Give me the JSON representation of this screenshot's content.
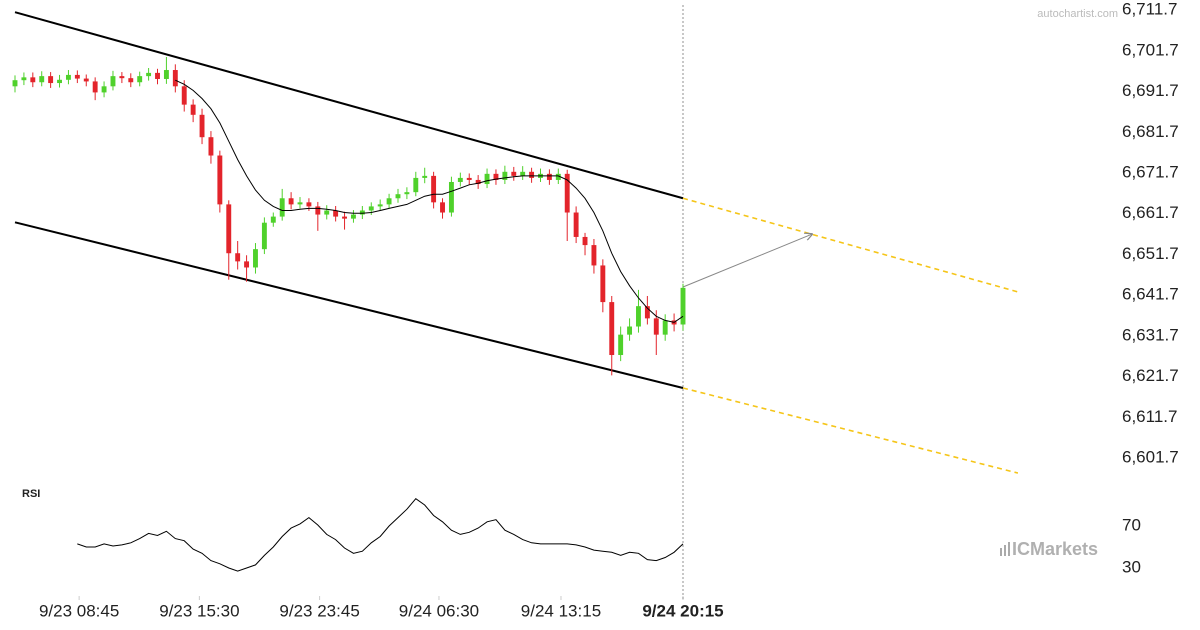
{
  "chart_data": {
    "type": "candlestick",
    "watermark": "autochartist.com",
    "brand": "ICMarkets",
    "up_color": "#4fd12b",
    "down_color": "#e3242b",
    "xlim": [
      0,
      75
    ],
    "xticks": [
      {
        "value": 7.2,
        "label": "9/23 08:45"
      },
      {
        "value": 20.7,
        "label": "9/23 15:30"
      },
      {
        "value": 34.2,
        "label": "9/23 23:45"
      },
      {
        "value": 47.6,
        "label": "9/24 06:30"
      },
      {
        "value": 61.3,
        "label": "9/24 13:15"
      },
      {
        "value": 75,
        "label": "9/24 20:15"
      }
    ],
    "ylim": [
      6596.3,
      6714.2
    ],
    "yticks": [
      {
        "value": 6711.7,
        "label": "6,711.7"
      },
      {
        "value": 6701.7,
        "label": "6,701.7"
      },
      {
        "value": 6691.7,
        "label": "6,691.7"
      },
      {
        "value": 6681.7,
        "label": "6,681.7"
      },
      {
        "value": 6671.7,
        "label": "6,671.7"
      },
      {
        "value": 6661.7,
        "label": "6,661.7"
      },
      {
        "value": 6651.7,
        "label": "6,651.7"
      },
      {
        "value": 6641.7,
        "label": "6,641.7"
      },
      {
        "value": 6631.7,
        "label": "6,631.7"
      },
      {
        "value": 6621.7,
        "label": "6,621.7"
      },
      {
        "value": 6611.7,
        "label": "6,611.7"
      },
      {
        "value": 6601.7,
        "label": "6,601.7"
      }
    ],
    "open": [
      6693.0,
      6694.5,
      6695.2,
      6694.0,
      6695.5,
      6693.8,
      6694.6,
      6695.8,
      6694.9,
      6694.2,
      6691.5,
      6693.0,
      6695.5,
      6695.0,
      6694.0,
      6695.5,
      6696.3,
      6694.8,
      6697.0,
      6693.0,
      6688.5,
      6686.0,
      6680.5,
      6676.0,
      6664.0,
      6652.0,
      6650.0,
      6648.5,
      6653.0,
      6659.5,
      6661.0,
      6665.5,
      6664.0,
      6664.5,
      6663.5,
      6661.5,
      6662.5,
      6661.0,
      6660.5,
      6661.5,
      6662.5,
      6663.5,
      6664.0,
      6665.5,
      6666.5,
      6667.0,
      6670.5,
      6671.0,
      6664.5,
      6662.0,
      6669.5,
      6670.5,
      6670.0,
      6669.0,
      6671.5,
      6670.0,
      6672.0,
      6671.0,
      6672.0,
      6670.5,
      6671.5,
      6670.0,
      6671.5,
      6662.0,
      6656.0,
      6654.0,
      6649.0,
      6640.0,
      6627.0,
      6632.0,
      6634.0,
      6639.0,
      6636.0,
      6632.0,
      6635.5,
      6634.5
    ],
    "high": [
      6695.7,
      6696.4,
      6696.4,
      6696.7,
      6696.5,
      6695.8,
      6697.0,
      6696.9,
      6695.9,
      6695.2,
      6694.2,
      6696.8,
      6696.5,
      6696.2,
      6696.6,
      6697.5,
      6697.3,
      6700.2,
      6698.4,
      6694.5,
      6689.8,
      6687.5,
      6682.0,
      6677.2,
      6665.0,
      6655.0,
      6651.5,
      6654.5,
      6660.8,
      6662.0,
      6667.8,
      6667.0,
      6665.8,
      6665.5,
      6664.6,
      6663.8,
      6663.6,
      6662.2,
      6662.6,
      6663.6,
      6664.5,
      6665.2,
      6666.6,
      6667.8,
      6668.2,
      6672.0,
      6673.0,
      6672.0,
      6665.5,
      6670.8,
      6671.8,
      6671.6,
      6671.2,
      6672.8,
      6672.6,
      6673.5,
      6673.2,
      6673.4,
      6673.0,
      6672.8,
      6672.6,
      6672.8,
      6672.5,
      6663.5,
      6657.0,
      6655.5,
      6650.5,
      6641.5,
      6634.0,
      6636.0,
      6643.0,
      6641.5,
      6638.0,
      6637.0,
      6637.2,
      6644.5
    ],
    "low": [
      6691.5,
      6693.3,
      6692.8,
      6693.0,
      6692.6,
      6692.7,
      6693.5,
      6693.8,
      6693.0,
      6689.6,
      6690.3,
      6692.0,
      6693.8,
      6692.8,
      6693.0,
      6694.4,
      6693.5,
      6693.6,
      6691.5,
      6686.8,
      6684.2,
      6678.8,
      6674.0,
      6662.0,
      6645.5,
      6648.0,
      6645.0,
      6647.0,
      6651.8,
      6658.5,
      6660.0,
      6662.8,
      6663.0,
      6662.4,
      6657.5,
      6660.3,
      6659.8,
      6657.8,
      6659.5,
      6660.4,
      6661.4,
      6662.5,
      6663.0,
      6664.4,
      6665.3,
      6666.0,
      6669.2,
      6663.0,
      6660.5,
      6661.0,
      6668.4,
      6668.8,
      6667.8,
      6668.0,
      6668.8,
      6669.0,
      6669.8,
      6670.0,
      6669.3,
      6669.5,
      6668.8,
      6669.0,
      6655.0,
      6654.5,
      6651.5,
      6647.0,
      6637.5,
      6622.0,
      6625.5,
      6630.5,
      6632.5,
      6634.5,
      6627.0,
      6630.5,
      6632.8,
      6633.0
    ],
    "close": [
      6694.5,
      6695.2,
      6694.0,
      6695.5,
      6693.8,
      6694.6,
      6695.8,
      6694.9,
      6694.2,
      6691.5,
      6693.0,
      6695.5,
      6695.0,
      6694.0,
      6695.5,
      6696.3,
      6694.8,
      6697.0,
      6693.0,
      6688.5,
      6686.0,
      6680.5,
      6676.0,
      6664.0,
      6652.0,
      6650.0,
      6648.5,
      6653.0,
      6659.5,
      6661.0,
      6665.5,
      6664.0,
      6664.5,
      6663.5,
      6661.5,
      6662.5,
      6661.0,
      6660.5,
      6661.5,
      6662.5,
      6663.5,
      6664.0,
      6665.5,
      6666.5,
      6667.0,
      6670.5,
      6671.0,
      6664.5,
      6662.0,
      6669.5,
      6670.5,
      6670.0,
      6669.0,
      6671.5,
      6670.0,
      6672.0,
      6671.0,
      6672.0,
      6670.5,
      6671.5,
      6670.0,
      6671.5,
      6662.0,
      6656.0,
      6654.0,
      6649.0,
      6640.0,
      6627.0,
      6632.0,
      6634.0,
      6639.0,
      6636.0,
      6632.0,
      6635.5,
      6634.5,
      6643.5
    ],
    "ma": {
      "color": "#000000",
      "values": [
        null,
        null,
        null,
        null,
        null,
        null,
        null,
        null,
        null,
        null,
        null,
        null,
        null,
        null,
        null,
        null,
        null,
        null,
        6694.5,
        6693.5,
        6692,
        6690,
        6687.5,
        6684,
        6679.5,
        6675,
        6671,
        6667.5,
        6665,
        6663.5,
        6662.5,
        6662.5,
        6662.8,
        6663,
        6663,
        6662.8,
        6662.5,
        6662,
        6661.8,
        6661.8,
        6662,
        6662.5,
        6663,
        6663.5,
        6664,
        6665,
        6666,
        6666.5,
        6666.5,
        6667.2,
        6668,
        6668.8,
        6669.2,
        6669.8,
        6670.2,
        6670.5,
        6670.8,
        6671,
        6671,
        6671,
        6671,
        6671,
        6670,
        6668,
        6665.5,
        6662,
        6657.5,
        6652,
        6647.5,
        6644,
        6641,
        6638.5,
        6636.5,
        6635.5,
        6635,
        6636.5
      ]
    },
    "trendlines": [
      {
        "x": [
          0,
          75
        ],
        "y": [
          6711.2,
          6665.5
        ],
        "color": "#000000",
        "dashed": false,
        "arrow": false
      },
      {
        "x": [
          0,
          75
        ],
        "y": [
          6659.6,
          6618.9
        ],
        "color": "#000000",
        "dashed": false,
        "arrow": false
      },
      {
        "x": [
          75,
          112.6
        ],
        "y": [
          6665.5,
          6642.5
        ],
        "color": "#f5c518",
        "dashed": true,
        "arrow": false
      },
      {
        "x": [
          75,
          112.6
        ],
        "y": [
          6618.9,
          6598.0
        ],
        "color": "#f5c518",
        "dashed": true,
        "arrow": false
      },
      {
        "x": [
          75,
          89.5
        ],
        "y": [
          6643.7,
          6656.7
        ],
        "color": "#888888",
        "dashed": false,
        "arrow": true
      }
    ],
    "rsi": {
      "label": "RSI",
      "color": "#000000",
      "ylim": [
        20,
        100
      ],
      "yticks": [
        30,
        70
      ],
      "values": [
        null,
        null,
        null,
        null,
        null,
        null,
        null,
        53,
        50,
        50,
        53,
        51,
        52,
        54,
        58,
        63,
        61,
        65,
        58,
        56,
        48,
        44,
        37,
        34,
        30,
        27,
        30,
        33,
        42,
        50,
        60,
        68,
        72,
        78,
        71,
        62,
        57,
        49,
        44,
        46,
        54,
        60,
        70,
        78,
        86,
        96,
        90,
        80,
        74,
        66,
        62,
        64,
        68,
        74,
        76,
        66,
        62,
        57,
        54,
        53,
        53,
        53,
        53,
        52,
        50,
        47,
        46,
        45,
        42,
        45,
        44,
        38,
        37,
        40,
        45,
        53
      ]
    }
  }
}
